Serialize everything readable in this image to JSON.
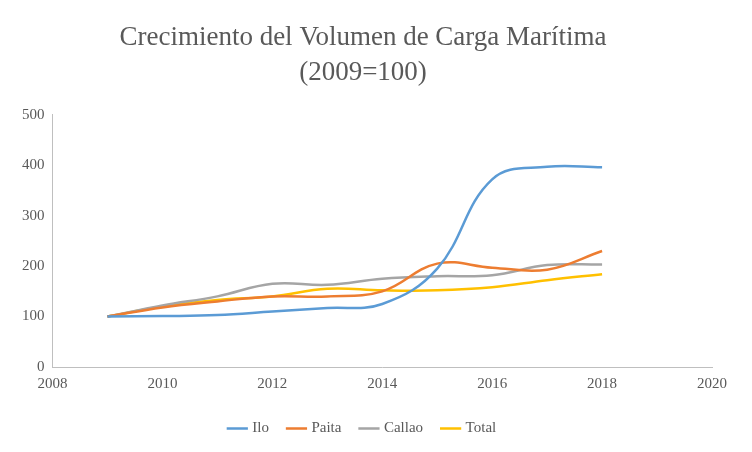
{
  "chart_data": {
    "type": "line",
    "title": "Crecimiento del Volumen de Carga Marítima",
    "subtitle": "(2009=100)",
    "x": [
      2009,
      2010,
      2011,
      2012,
      2013,
      2014,
      2015,
      2016,
      2017,
      2018
    ],
    "series": [
      {
        "name": "Ilo",
        "color": "#5b9bd5",
        "values": [
          100,
          101,
          103,
          110,
          117,
          125,
          195,
          372,
          397,
          396
        ]
      },
      {
        "name": "Paita",
        "color": "#ed7d31",
        "values": [
          100,
          118,
          130,
          140,
          140,
          150,
          205,
          197,
          193,
          230
        ]
      },
      {
        "name": "Callao",
        "color": "#a5a5a5",
        "values": [
          100,
          122,
          140,
          165,
          163,
          175,
          180,
          182,
          202,
          203
        ]
      },
      {
        "name": "Total",
        "color": "#ffc000",
        "values": [
          100,
          120,
          133,
          140,
          155,
          152,
          152,
          158,
          172,
          184
        ]
      }
    ],
    "xlim": [
      2008,
      2020
    ],
    "xticks": [
      2008,
      2010,
      2012,
      2014,
      2016,
      2018,
      2020
    ],
    "ylim": [
      0,
      500
    ],
    "yticks": [
      0,
      100,
      200,
      300,
      400,
      500
    ],
    "grid": false,
    "legend": "bottom"
  }
}
